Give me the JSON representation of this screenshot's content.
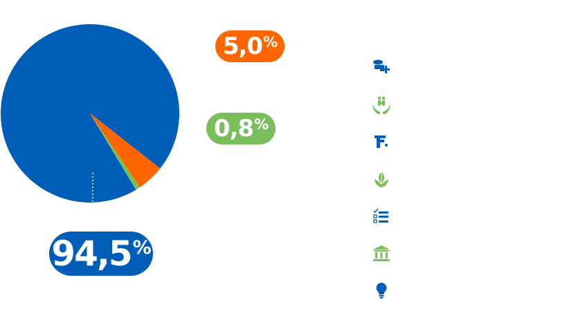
{
  "colors": {
    "blue": "#005eb8",
    "orange": "#ff6600",
    "green": "#78be5a",
    "white": "#ffffff"
  },
  "chart_data": {
    "type": "pie",
    "title": "",
    "start_angle_deg": 59,
    "slices": [
      {
        "value": 94.5,
        "label": "94,5",
        "unit": "%",
        "color": "#005eb8"
      },
      {
        "value": 5.0,
        "label": "5,0",
        "unit": "%",
        "color": "#ff6600"
      },
      {
        "value": 0.8,
        "label": "0,8",
        "unit": "%",
        "color": "#78be5a"
      }
    ]
  },
  "legend_icons": [
    {
      "icon": "healthcare-icon",
      "color": "#005eb8"
    },
    {
      "icon": "family-care-icon",
      "color": "#78be5a"
    },
    {
      "icon": "water-tap-icon",
      "color": "#005eb8"
    },
    {
      "icon": "agriculture-icon",
      "color": "#78be5a"
    },
    {
      "icon": "checklist-icon",
      "color": "#005eb8"
    },
    {
      "icon": "government-building-icon",
      "color": "#78be5a"
    },
    {
      "icon": "lightbulb-icon",
      "color": "#005eb8"
    }
  ]
}
